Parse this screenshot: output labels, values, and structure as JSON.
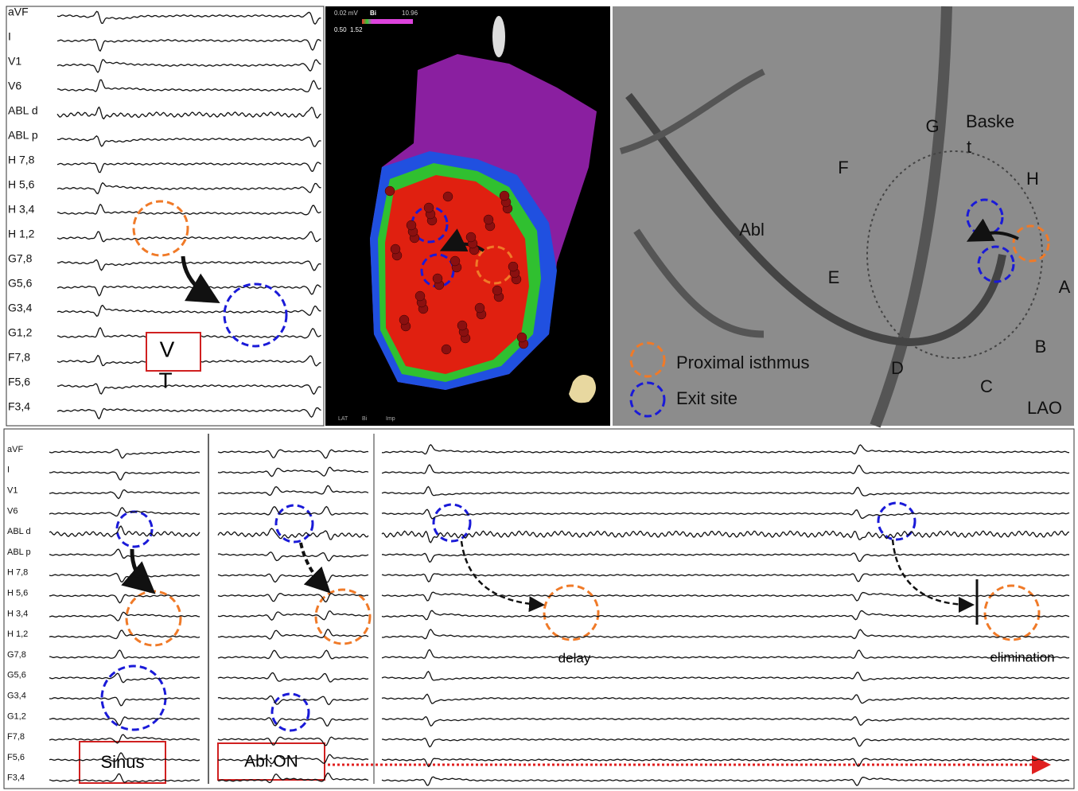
{
  "top_ecg": {
    "leads": [
      "aVF",
      "I",
      "V1",
      "V6",
      "ABL d",
      "ABL p",
      "H 7,8",
      "H 5,6",
      "H 3,4",
      "H 1,2",
      "G7,8",
      "G5,6",
      "G3,4",
      "G1,2",
      "F7,8",
      "F5,6",
      "F3,4"
    ],
    "box": [
      "V",
      "T"
    ]
  },
  "map": {
    "scale_min": "0.02 mV",
    "mode": "Bi",
    "scale_max": "10.96",
    "low": "0.50",
    "high": "1.52",
    "tabs": [
      "LAT",
      "Bi",
      "Imp"
    ]
  },
  "fluoro": {
    "labels": [
      "G",
      "Baske",
      "t",
      "F",
      "H",
      "Abl",
      "E",
      "A",
      "B",
      "D",
      "C",
      "LAO"
    ],
    "legend": [
      "Proximal isthmus",
      "Exit site"
    ]
  },
  "bottom_ecg": {
    "leads": [
      "aVF",
      "I",
      "V1",
      "V6",
      "ABL d",
      "ABL p",
      "H 7,8",
      "H 5,6",
      "H 3,4",
      "H 1,2",
      "G7,8",
      "G5,6",
      "G3,4",
      "G1,2",
      "F7,8",
      "F5,6",
      "F3,4"
    ],
    "sinus": "Sinus",
    "abl_on": "Abl:ON",
    "delay": "delay",
    "elimination": "elimination"
  }
}
